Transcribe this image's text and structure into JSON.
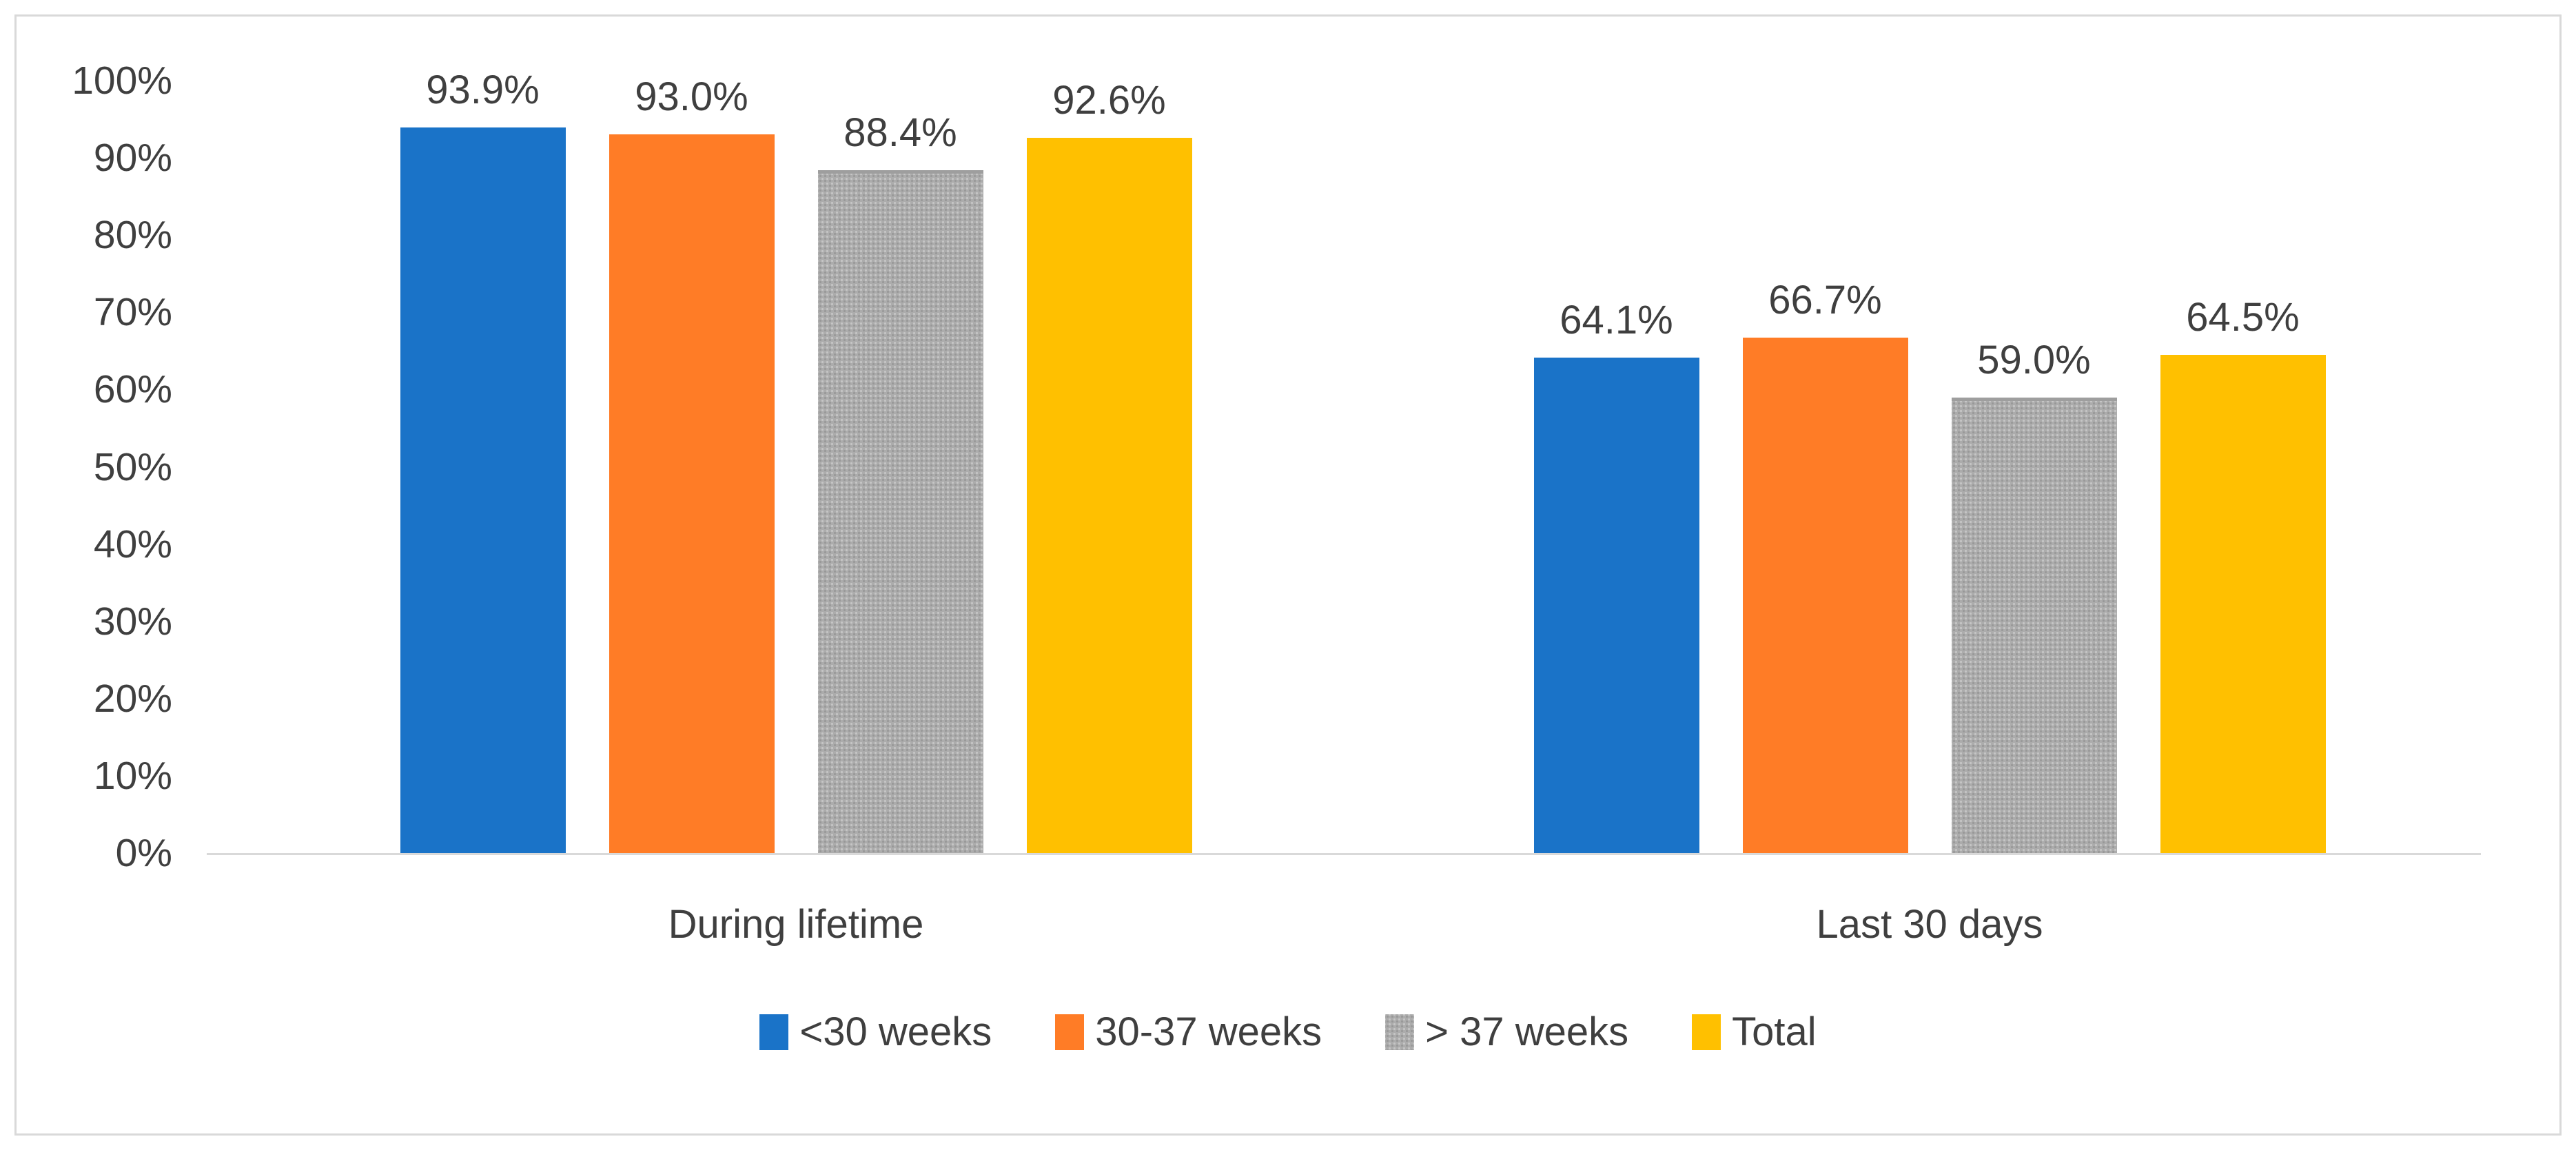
{
  "chart_data": {
    "type": "bar",
    "title": "",
    "xlabel": "",
    "ylabel": "",
    "categories": [
      "During lifetime",
      "Last 30 days"
    ],
    "series": [
      {
        "name": "<30 weeks",
        "color": "#1A73C8",
        "pattern": "solid",
        "values": [
          93.9,
          64.1
        ],
        "labels": [
          "93.9%",
          "64.1%"
        ]
      },
      {
        "name": "30-37 weeks",
        "color": "#FF7C26",
        "pattern": "solid",
        "values": [
          93.0,
          66.7
        ],
        "labels": [
          "93.0%",
          "66.7%"
        ]
      },
      {
        "name": "> 37 weeks",
        "color": "#ABABAB",
        "pattern": "speckle",
        "values": [
          88.4,
          59.0
        ],
        "labels": [
          "88.4%",
          "59.0%"
        ]
      },
      {
        "name": "Total",
        "color": "#FFC000",
        "pattern": "solid",
        "values": [
          92.6,
          64.5
        ],
        "labels": [
          "92.6%",
          "64.5%"
        ]
      }
    ],
    "y_axis": {
      "min": 0,
      "max": 100,
      "step": 10,
      "tick_labels": [
        "0%",
        "10%",
        "20%",
        "30%",
        "40%",
        "50%",
        "60%",
        "70%",
        "80%",
        "90%",
        "100%"
      ]
    },
    "grid": false,
    "legend_position": "bottom",
    "axis_line_color": "#D9D9D9",
    "frame_border_color": "#D9D9D9",
    "text_color": "#3F3F3F"
  }
}
